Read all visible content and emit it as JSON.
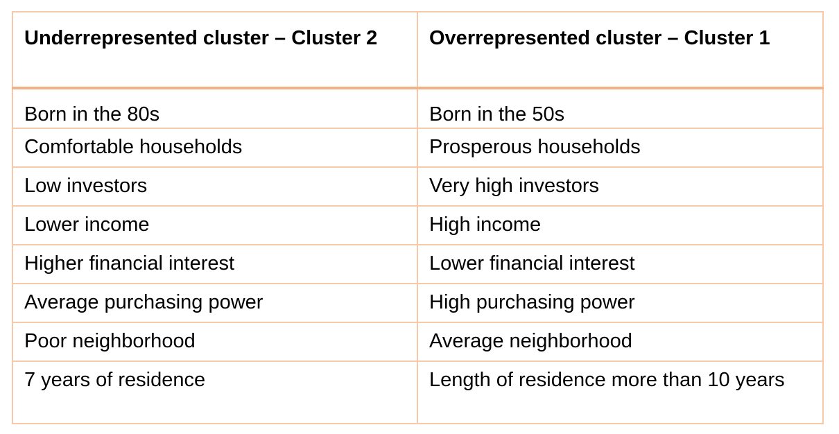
{
  "table": {
    "headers": [
      "Underrepresented cluster – Cluster 2",
      "Overrepresented cluster – Cluster 1"
    ],
    "rows": [
      [
        "Born in the 80s",
        "Born in the 50s"
      ],
      [
        "Comfortable households",
        "Prosperous households"
      ],
      [
        "Low investors",
        "Very high investors"
      ],
      [
        "Lower income",
        "High income"
      ],
      [
        "Higher financial interest",
        "Lower financial interest"
      ],
      [
        "Average purchasing power",
        "High purchasing power"
      ],
      [
        "Poor neighborhood",
        "Average neighborhood"
      ],
      [
        "7 years of residence",
        "Length of residence more than 10 years"
      ]
    ]
  },
  "colors": {
    "border": "#f7c9a8",
    "header_rule": "#f2b287"
  }
}
